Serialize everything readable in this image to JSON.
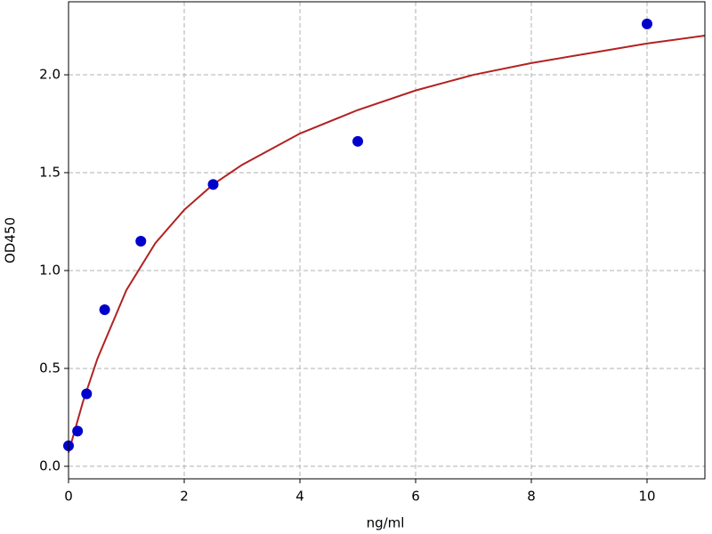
{
  "chart_data": {
    "type": "scatter",
    "x_label": "ng/ml",
    "y_label": "OD450",
    "xlim": [
      0,
      11
    ],
    "ylim": [
      -0.064,
      2.373
    ],
    "xticks": [
      0,
      2,
      4,
      6,
      8,
      10
    ],
    "yticks": [
      {
        "value": 0,
        "label": "0.0"
      },
      0.5,
      {
        "value": 1,
        "label": "1.0"
      },
      1.5,
      {
        "value": 2,
        "label": "2.0"
      }
    ],
    "grid": true,
    "series": [
      {
        "type": "scatter",
        "color": "#0000cc",
        "x": [
          0,
          0.156,
          0.3125,
          0.625,
          1.25,
          2.5,
          5,
          10
        ],
        "values": [
          0.105,
          0.18,
          0.37,
          0.8,
          1.15,
          1.44,
          1.66,
          2.26
        ]
      },
      {
        "type": "line",
        "color": "#b22222",
        "x": [
          0,
          0.25,
          0.5,
          1,
          1.5,
          2,
          2.5,
          3,
          4,
          5,
          6,
          7,
          8,
          9,
          10,
          11
        ],
        "values": [
          0.07,
          0.33,
          0.55,
          0.9,
          1.14,
          1.31,
          1.44,
          1.54,
          1.7,
          1.82,
          1.92,
          2.0,
          2.06,
          2.11,
          2.16,
          2.2
        ]
      }
    ]
  }
}
